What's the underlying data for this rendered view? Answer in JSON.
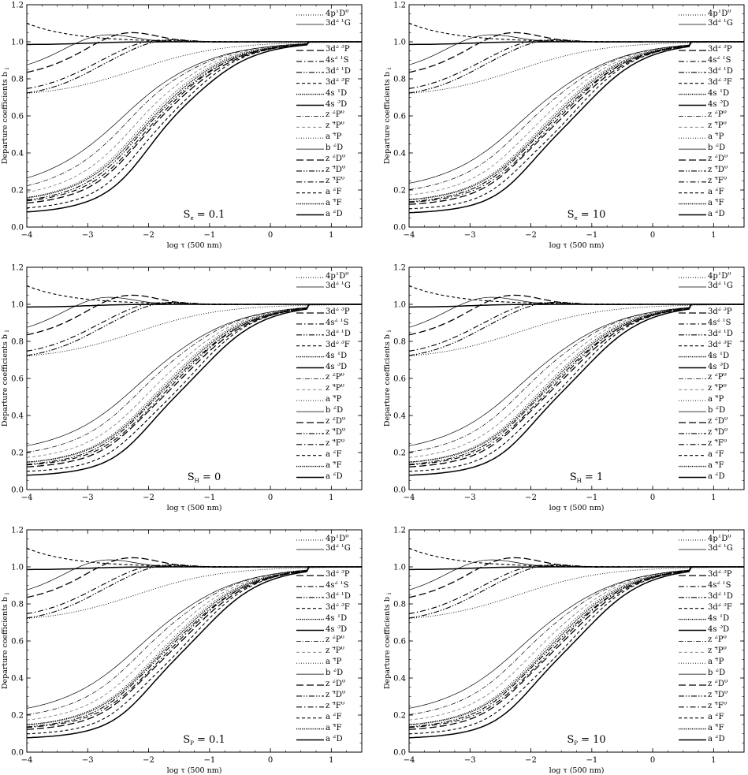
{
  "figure": {
    "xlabel": "log τ (500 nm)",
    "ylabel": "Departure coefficients b",
    "ylabel_sub": "i",
    "xlim": [
      -4,
      1.5
    ],
    "ylim": [
      0,
      1.2
    ],
    "xticks": [
      "−4",
      "−3",
      "−2",
      "−1",
      "0",
      "1"
    ],
    "yticks": [
      "0.0",
      "0.2",
      "0.4",
      "0.6",
      "0.8",
      "1.0",
      "1.2"
    ]
  },
  "legend_top": [
    {
      "html": "4p<sup>1</sup>D<sup>o</sup>",
      "style": "dot"
    },
    {
      "html": "3d<sup>2 1</sup>G",
      "style": "thin"
    }
  ],
  "legend_main": [
    {
      "html": "3d<sup>2 3</sup>P",
      "style": "longdash"
    },
    {
      "html": "4s<sup>2 1</sup>S",
      "style": "dashdot"
    },
    {
      "html": "3d<sup>2 1</sup>D",
      "style": "dashdotdot"
    },
    {
      "html": "3d<sup>2 3</sup>F",
      "style": "shortdash"
    },
    {
      "html": "4s <sup>1</sup>D",
      "style": "densedot"
    },
    {
      "html": "4s <sup>3</sup>D",
      "style": "solid"
    },
    {
      "html": "z <sup>2</sup>P<sup>o</sup>",
      "style": "thindashdot"
    },
    {
      "html": "z <sup>4</sup>P<sup>o</sup>",
      "style": "graydash"
    },
    {
      "html": "a <sup>4</sup>P",
      "style": "dot"
    },
    {
      "html": "b <sup>2</sup>D",
      "style": "thin"
    },
    {
      "html": "z <sup>2</sup>D<sup>o</sup>",
      "style": "longdash"
    },
    {
      "html": "z <sup>4</sup>D<sup>o</sup>",
      "style": "dashdotdot"
    },
    {
      "html": "z <sup>4</sup>F<sup>o</sup>",
      "style": "dashdot"
    },
    {
      "html": "a <sup>2</sup>F",
      "style": "shortdash"
    },
    {
      "html": "a <sup>4</sup>F",
      "style": "densedot"
    },
    {
      "html": "a <sup>2</sup>D",
      "style": "solid"
    }
  ],
  "chart_data": [
    {
      "type": "line",
      "panel_label": "S",
      "panel_sub": "e",
      "panel_value": " = 0.1"
    },
    {
      "type": "line",
      "panel_label": "S",
      "panel_sub": "e",
      "panel_value": " = 10"
    },
    {
      "type": "line",
      "panel_label": "S",
      "panel_sub": "H",
      "panel_value": " = 0"
    },
    {
      "type": "line",
      "panel_label": "S",
      "panel_sub": "H",
      "panel_value": " = 1"
    },
    {
      "type": "line",
      "panel_label": "S",
      "panel_sub": "P",
      "panel_value": " = 0.1"
    },
    {
      "type": "line",
      "panel_label": "S",
      "panel_sub": "P",
      "panel_value": " = 10"
    }
  ]
}
